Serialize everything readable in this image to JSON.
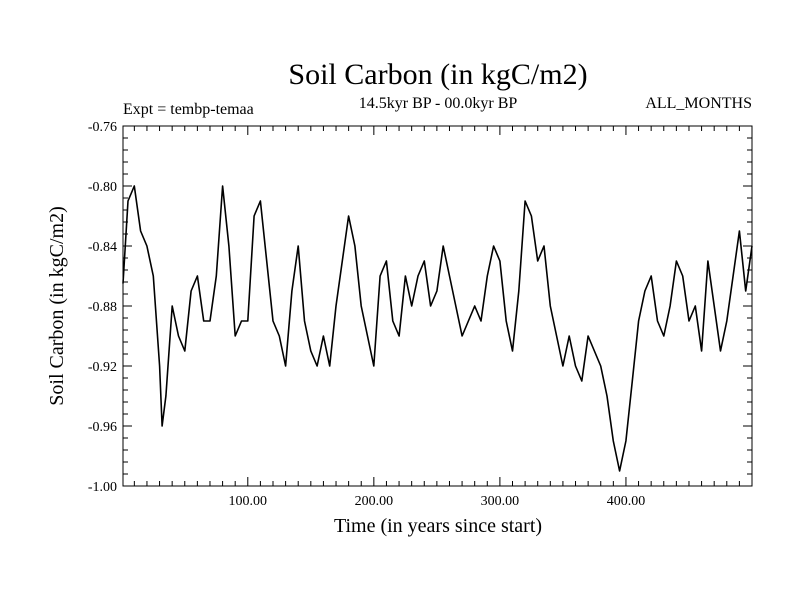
{
  "chart_data": {
    "type": "line",
    "title": "Soil Carbon (in kgC/m2)",
    "subtitle_left": "Expt = tembp-temaa",
    "subtitle_center": "14.5kyr BP - 00.0kyr BP",
    "subtitle_right": "ALL_MONTHS",
    "xlabel": "Time (in years since start)",
    "ylabel": "Soil Carbon (in kgC/m2)",
    "xlim": [
      1,
      500
    ],
    "ylim": [
      -1.0,
      -0.76
    ],
    "x_ticks": [
      {
        "value": 100,
        "label": "100.00"
      },
      {
        "value": 200,
        "label": "200.00"
      },
      {
        "value": 300,
        "label": "300.00"
      },
      {
        "value": 400,
        "label": "400.00"
      }
    ],
    "y_ticks": [
      {
        "value": -0.76,
        "label": "-0.76"
      },
      {
        "value": -0.8,
        "label": "-0.80"
      },
      {
        "value": -0.84,
        "label": "-0.84"
      },
      {
        "value": -0.88,
        "label": "-0.88"
      },
      {
        "value": -0.92,
        "label": "-0.92"
      },
      {
        "value": -0.96,
        "label": "-0.96"
      },
      {
        "value": -1.0,
        "label": "-1.00"
      }
    ],
    "grid": false,
    "series": [
      {
        "name": "Soil Carbon",
        "color": "#000000",
        "x": [
          1,
          5,
          10,
          15,
          20,
          25,
          30,
          32,
          35,
          40,
          45,
          50,
          55,
          60,
          65,
          70,
          75,
          80,
          85,
          90,
          95,
          100,
          105,
          110,
          115,
          120,
          125,
          130,
          135,
          140,
          145,
          150,
          155,
          160,
          165,
          170,
          175,
          180,
          185,
          190,
          195,
          200,
          205,
          210,
          215,
          220,
          225,
          230,
          235,
          240,
          245,
          250,
          255,
          260,
          265,
          270,
          275,
          280,
          285,
          290,
          295,
          300,
          305,
          310,
          315,
          320,
          325,
          330,
          335,
          340,
          345,
          350,
          355,
          360,
          365,
          370,
          375,
          380,
          385,
          390,
          395,
          400,
          405,
          410,
          415,
          420,
          425,
          430,
          435,
          440,
          445,
          450,
          455,
          460,
          465,
          470,
          475,
          480,
          485,
          490,
          495,
          500
        ],
        "values": [
          -0.865,
          -0.81,
          -0.8,
          -0.83,
          -0.84,
          -0.86,
          -0.92,
          -0.96,
          -0.94,
          -0.88,
          -0.9,
          -0.91,
          -0.87,
          -0.86,
          -0.89,
          -0.89,
          -0.86,
          -0.8,
          -0.84,
          -0.9,
          -0.89,
          -0.89,
          -0.82,
          -0.81,
          -0.85,
          -0.89,
          -0.9,
          -0.92,
          -0.87,
          -0.84,
          -0.89,
          -0.91,
          -0.92,
          -0.9,
          -0.92,
          -0.88,
          -0.85,
          -0.82,
          -0.84,
          -0.88,
          -0.9,
          -0.92,
          -0.86,
          -0.85,
          -0.89,
          -0.9,
          -0.86,
          -0.88,
          -0.86,
          -0.85,
          -0.88,
          -0.87,
          -0.84,
          -0.86,
          -0.88,
          -0.9,
          -0.89,
          -0.88,
          -0.89,
          -0.86,
          -0.84,
          -0.85,
          -0.89,
          -0.91,
          -0.87,
          -0.81,
          -0.82,
          -0.85,
          -0.84,
          -0.88,
          -0.9,
          -0.92,
          -0.9,
          -0.92,
          -0.93,
          -0.9,
          -0.91,
          -0.92,
          -0.94,
          -0.97,
          -0.99,
          -0.97,
          -0.93,
          -0.89,
          -0.87,
          -0.86,
          -0.89,
          -0.9,
          -0.88,
          -0.85,
          -0.86,
          -0.89,
          -0.88,
          -0.91,
          -0.85,
          -0.88,
          -0.91,
          -0.89,
          -0.86,
          -0.83,
          -0.87,
          -0.84
        ]
      }
    ]
  }
}
